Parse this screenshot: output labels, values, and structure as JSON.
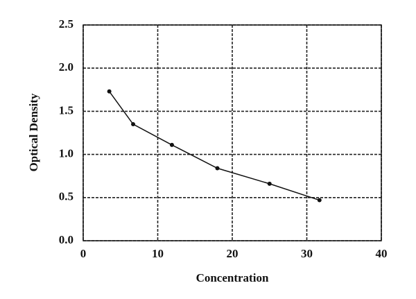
{
  "chart_data": {
    "type": "line",
    "x_label": "Concentration",
    "y_label": "Optical Density",
    "x": [
      3.5,
      6.7,
      11.9,
      18.0,
      25.0,
      31.7
    ],
    "series": [
      {
        "color": "#111111",
        "values": [
          1.73,
          1.35,
          1.11,
          0.84,
          0.66,
          0.47
        ]
      }
    ],
    "xlim": [
      0,
      40
    ],
    "xticks": [
      0,
      10,
      20,
      30,
      40
    ],
    "ylim": [
      0,
      2.5
    ],
    "yticks": [
      {
        "value": 0,
        "label": "0.0"
      },
      0.5,
      {
        "value": 1,
        "label": "1.0"
      },
      1.5,
      {
        "value": 2,
        "label": "2.0"
      },
      2.5
    ],
    "grid": true
  }
}
